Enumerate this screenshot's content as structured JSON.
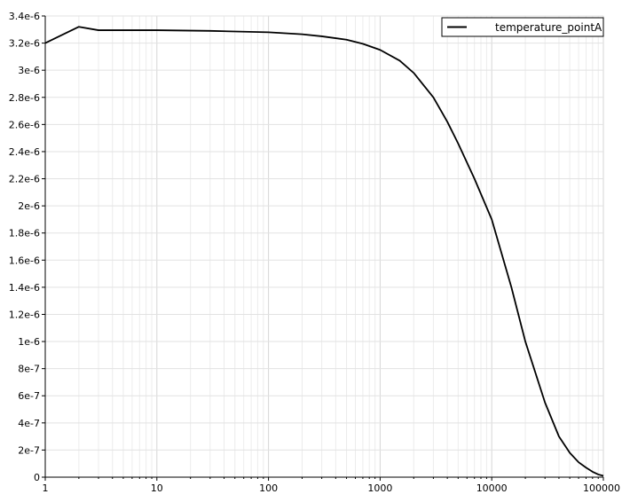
{
  "chart_data": {
    "type": "line",
    "title": "",
    "xlabel": "",
    "ylabel": "",
    "x_scale": "log",
    "xlim": [
      1,
      100000
    ],
    "ylim": [
      0,
      3.4e-06
    ],
    "grid": true,
    "legend_position": "top-right",
    "x_ticks": [
      {
        "value": 1,
        "label": "1"
      },
      {
        "value": 10,
        "label": "10"
      },
      {
        "value": 100,
        "label": "100"
      },
      {
        "value": 1000,
        "label": "1000"
      },
      {
        "value": 10000,
        "label": "10000"
      },
      {
        "value": 100000,
        "label": "100000"
      }
    ],
    "y_ticks": [
      {
        "value": 0,
        "label": "0"
      },
      {
        "value": 2e-07,
        "label": "2e-7"
      },
      {
        "value": 4e-07,
        "label": "4e-7"
      },
      {
        "value": 6e-07,
        "label": "6e-7"
      },
      {
        "value": 8e-07,
        "label": "8e-7"
      },
      {
        "value": 1e-06,
        "label": "1e-6"
      },
      {
        "value": 1.2e-06,
        "label": "1.2e-6"
      },
      {
        "value": 1.4e-06,
        "label": "1.4e-6"
      },
      {
        "value": 1.6e-06,
        "label": "1.6e-6"
      },
      {
        "value": 1.8e-06,
        "label": "1.8e-6"
      },
      {
        "value": 2e-06,
        "label": "2e-6"
      },
      {
        "value": 2.2e-06,
        "label": "2.2e-6"
      },
      {
        "value": 2.4e-06,
        "label": "2.4e-6"
      },
      {
        "value": 2.6e-06,
        "label": "2.6e-6"
      },
      {
        "value": 2.8e-06,
        "label": "2.8e-6"
      },
      {
        "value": 3e-06,
        "label": "3e-6"
      },
      {
        "value": 3.2e-06,
        "label": "3.2e-6"
      },
      {
        "value": 3.4e-06,
        "label": "3.4e-6"
      }
    ],
    "series": [
      {
        "name": "temperature_pointA",
        "color": "#000000",
        "x": [
          1,
          2,
          3,
          5,
          10,
          30,
          100,
          200,
          300,
          500,
          700,
          1000,
          1500,
          2000,
          3000,
          4000,
          5000,
          7000,
          10000,
          15000,
          20000,
          30000,
          40000,
          50000,
          60000,
          70000,
          80000,
          90000,
          100000
        ],
        "y": [
          3.2e-06,
          3.32e-06,
          3.295e-06,
          3.295e-06,
          3.295e-06,
          3.29e-06,
          3.28e-06,
          3.265e-06,
          3.25e-06,
          3.225e-06,
          3.195e-06,
          3.15e-06,
          3.07e-06,
          2.98e-06,
          2.8e-06,
          2.62e-06,
          2.46e-06,
          2.2e-06,
          1.9e-06,
          1.4e-06,
          1e-06,
          5.5e-07,
          3e-07,
          1.8e-07,
          1.1e-07,
          7e-08,
          4e-08,
          2e-08,
          1e-08
        ]
      }
    ]
  }
}
